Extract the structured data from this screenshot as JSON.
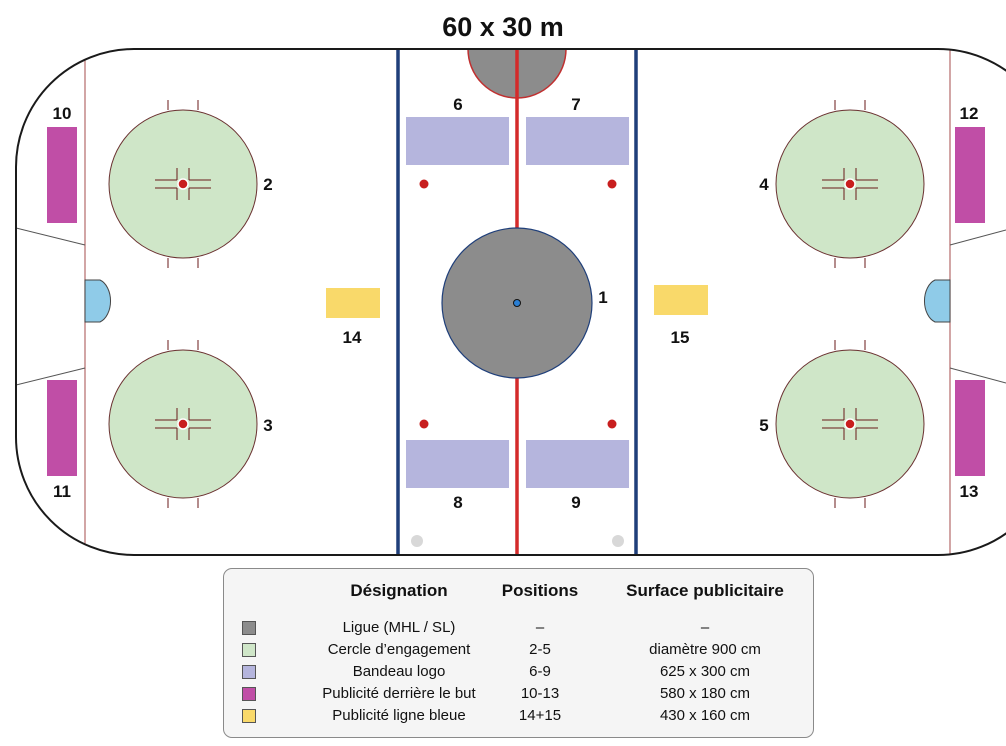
{
  "title": "60 x 30 m",
  "colors": {
    "ligue": "#8c8c8c",
    "cercle": "#cfe6c8",
    "bandeau": "#b5b5dd",
    "derriere_but": "#c04ea6",
    "ligne_bleue": "#f9d96a",
    "red_line": "#d42b2b",
    "blue_line": "#1f3f7a",
    "crease": "#8fcbe8"
  },
  "positions": {
    "p1": "1",
    "p2": "2",
    "p3": "3",
    "p4": "4",
    "p5": "5",
    "p6": "6",
    "p7": "7",
    "p8": "8",
    "p9": "9",
    "p10": "10",
    "p11": "11",
    "p12": "12",
    "p13": "13",
    "p14": "14",
    "p15": "15"
  },
  "legend": {
    "headers": [
      "Désignation",
      "Positions",
      "Surface publicitaire"
    ],
    "rows": [
      {
        "designation": "Ligue (MHL / SL)",
        "positions": "–",
        "surface": "–"
      },
      {
        "designation": "Cercle d’engagement",
        "positions": "2-5",
        "surface": "diamètre 900 cm"
      },
      {
        "designation": "Bandeau logo",
        "positions": "6-9",
        "surface": "625 x 300 cm"
      },
      {
        "designation": "Publicité derrière le but",
        "positions": "10-13",
        "surface": "580 x 180 cm"
      },
      {
        "designation": "Publicité ligne bleue",
        "positions": "14+15",
        "surface": "430 x 160 cm"
      }
    ]
  }
}
